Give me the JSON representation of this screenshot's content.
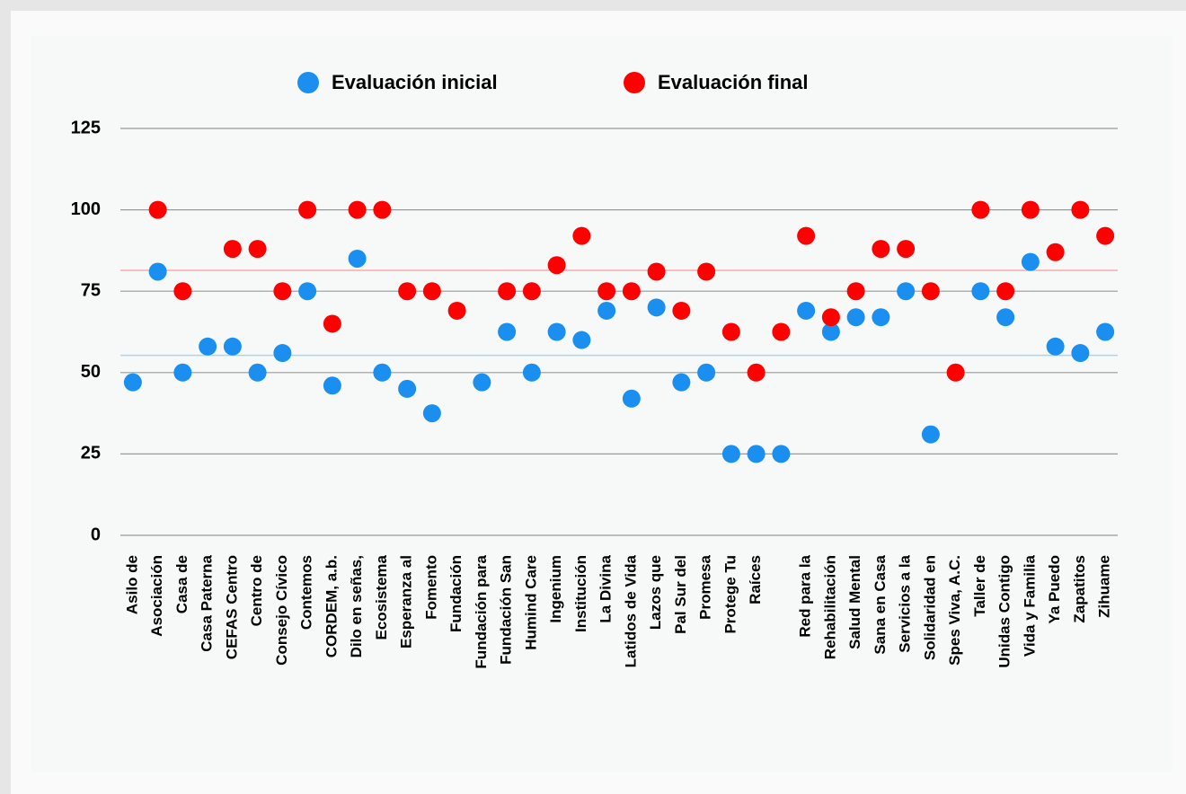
{
  "chart_data": {
    "type": "dot",
    "categories": [
      "Asilo de",
      "Asociación",
      "Casa de",
      "Casa Paterna",
      "CEFAS Centro",
      "Centro de",
      "Consejo Cívico",
      "Contemos",
      "CORDEM, a.b.",
      "Dilo en señas,",
      "Ecosistema",
      "Esperanza al",
      "Fomento",
      "Fundación",
      "Fundación para",
      "Fundación San",
      "Humind Care",
      "Ingenium",
      "Institución",
      "La Divina",
      "Latidos de Vida",
      "Lazos que",
      "Pal Sur del",
      "Promesa",
      "Protege Tu",
      "Raíces",
      null,
      "Red para la",
      "Rehabilitación",
      "Salud Mental",
      "Sana en Casa",
      "Servicios a la",
      "Solidaridad en",
      "Spes Viva, A.C.",
      "Taller de",
      "Unidas Contigo",
      "Vida y Familia",
      "Ya Puedo",
      "Zapatitos",
      "Zihuame"
    ],
    "series": [
      {
        "name": "Evaluación inicial",
        "color": "#1a8ff0",
        "values": [
          47,
          81,
          50,
          58,
          58,
          50,
          56,
          75,
          46,
          85,
          50,
          45,
          37.5,
          null,
          47,
          62.5,
          50,
          62.5,
          60,
          69,
          42,
          70,
          47,
          50,
          25,
          25,
          25,
          69,
          62.5,
          67,
          67,
          75,
          31,
          null,
          75,
          67,
          84,
          58,
          56,
          62.5
        ]
      },
      {
        "name": "Evaluación final",
        "color": "#ff0000",
        "values": [
          null,
          100,
          75,
          null,
          88,
          88,
          75,
          100,
          65,
          100,
          100,
          75,
          75,
          69,
          null,
          75,
          75,
          83,
          92,
          75,
          75,
          81,
          69,
          81,
          62.5,
          50,
          62.5,
          92,
          67,
          75,
          88,
          88,
          75,
          50,
          100,
          75,
          100,
          87,
          100,
          92
        ]
      }
    ],
    "reference_lines": [
      {
        "value": 55.3,
        "color": "#a8d4f5"
      },
      {
        "value": 81.4,
        "color": "#f5aaaa"
      }
    ],
    "ylim": [
      0,
      125
    ],
    "yticks": [
      0,
      25,
      50,
      75,
      100,
      125
    ],
    "grid": true,
    "legend": "top"
  }
}
